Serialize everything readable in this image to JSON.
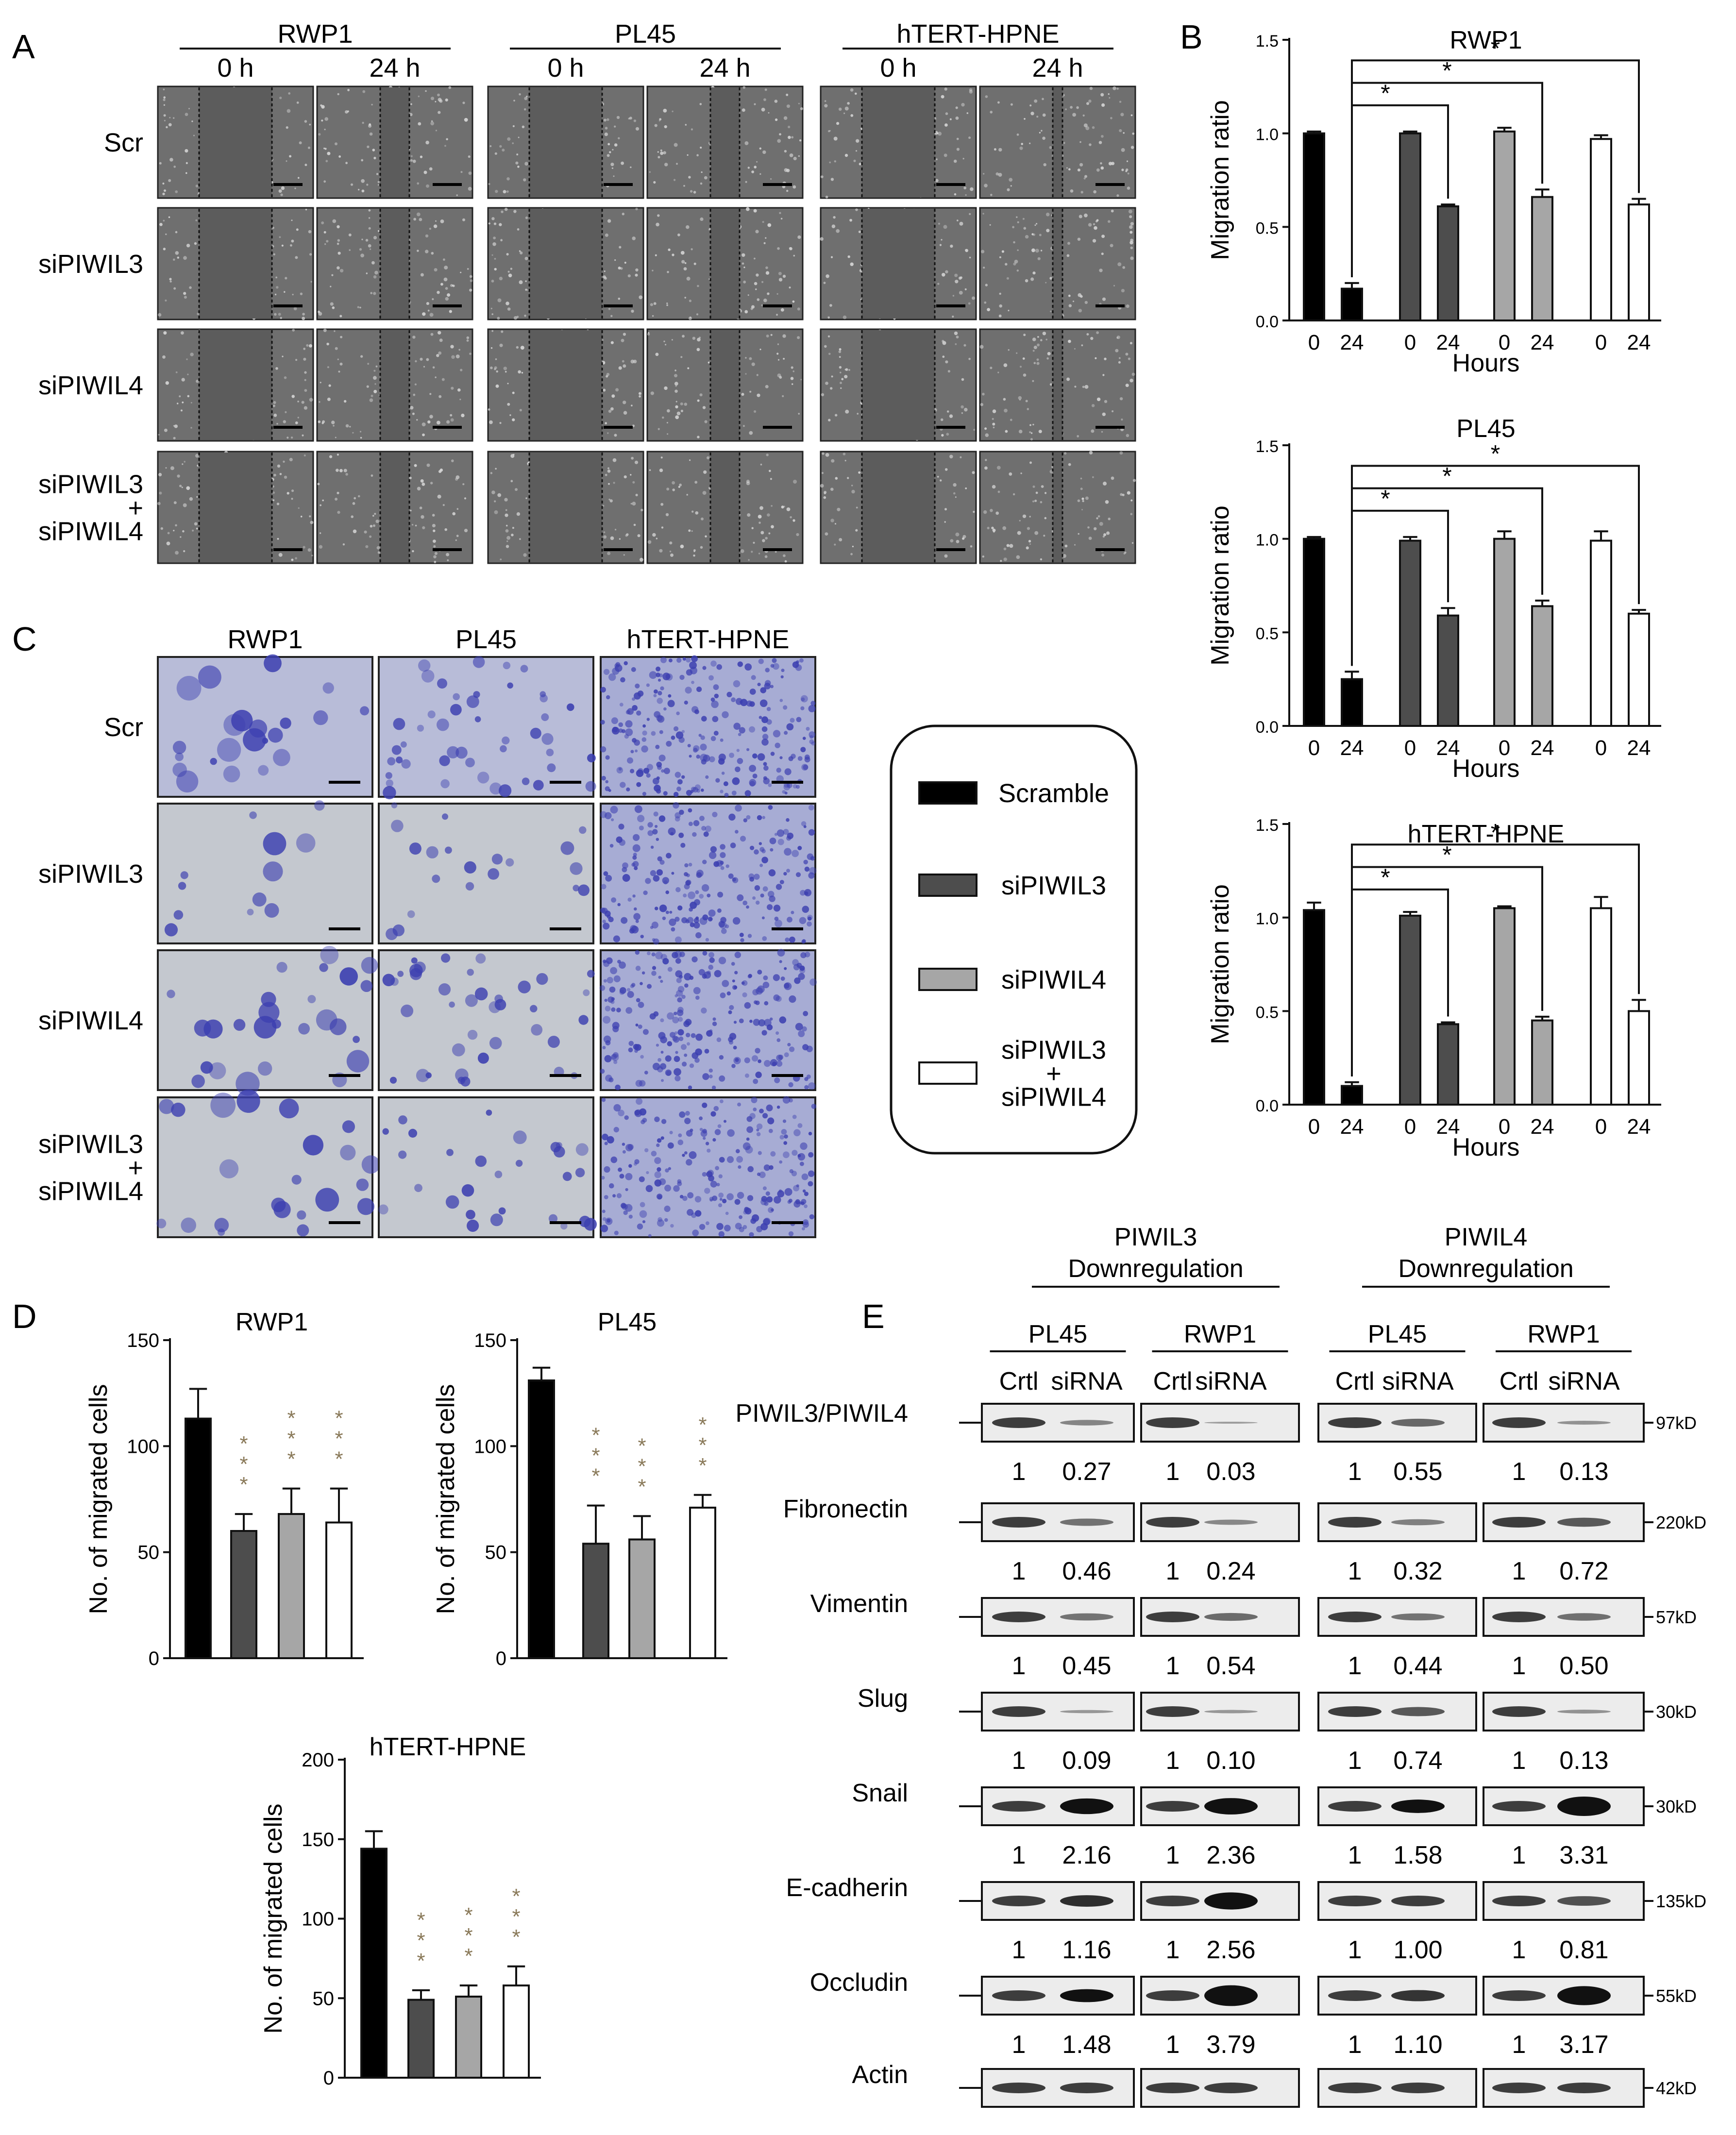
{
  "panel_letters": {
    "a": "A",
    "b": "B",
    "c": "C",
    "d": "D",
    "e": "E"
  },
  "panel_a": {
    "cell_lines": [
      "RWP1",
      "PL45",
      "hTERT-HPNE"
    ],
    "time_points": [
      "0 h",
      "24 h"
    ],
    "conditions": [
      "Scr",
      "siPIWIL3",
      "siPIWIL4",
      "siPIWIL3 + siPIWIL4"
    ]
  },
  "panel_c": {
    "cell_lines": [
      "RWP1",
      "PL45",
      "hTERT-HPNE"
    ],
    "conditions": [
      "Scr",
      "siPIWIL3",
      "siPIWIL4",
      "siPIWIL3 + siPIWIL4"
    ]
  },
  "legend": {
    "items": [
      {
        "label": "Scramble",
        "color": "#000000"
      },
      {
        "label": "siPIWIL3",
        "color": "#4d4d4d"
      },
      {
        "label": "siPIWIL4",
        "color": "#a6a6a6"
      },
      {
        "label": "siPIWIL3 + siPIWIL4",
        "color": "#ffffff"
      }
    ]
  },
  "chart_data": [
    {
      "id": "B-RWP1",
      "type": "bar",
      "title": "RWP1",
      "xlabel": "Hours",
      "ylabel": "Migration ratio",
      "ylim": [
        0,
        1.5
      ],
      "yticks": [
        "0.0",
        "0.5",
        "1.0",
        "1.5"
      ],
      "categories": [
        "0",
        "24",
        "0",
        "24",
        "0",
        "24",
        "0",
        "24"
      ],
      "groups": [
        "Scramble",
        "Scramble",
        "siPIWIL3",
        "siPIWIL3",
        "siPIWIL4",
        "siPIWIL4",
        "siPIWIL3 + siPIWIL4",
        "siPIWIL3 + siPIWIL4"
      ],
      "values": [
        1.0,
        0.17,
        1.0,
        0.61,
        1.01,
        0.66,
        0.97,
        0.62
      ],
      "errors": [
        0.01,
        0.03,
        0.01,
        0.01,
        0.02,
        0.04,
        0.02,
        0.03
      ],
      "significance": [
        "*",
        "*",
        "*"
      ]
    },
    {
      "id": "B-PL45",
      "type": "bar",
      "title": "PL45",
      "xlabel": "Hours",
      "ylabel": "Migration ratio",
      "ylim": [
        0,
        1.5
      ],
      "yticks": [
        "0.0",
        "0.5",
        "1.0",
        "1.5"
      ],
      "categories": [
        "0",
        "24",
        "0",
        "24",
        "0",
        "24",
        "0",
        "24"
      ],
      "groups": [
        "Scramble",
        "Scramble",
        "siPIWIL3",
        "siPIWIL3",
        "siPIWIL4",
        "siPIWIL4",
        "siPIWIL3 + siPIWIL4",
        "siPIWIL3 + siPIWIL4"
      ],
      "values": [
        1.0,
        0.25,
        0.99,
        0.59,
        1.0,
        0.64,
        0.99,
        0.6
      ],
      "errors": [
        0.01,
        0.04,
        0.02,
        0.04,
        0.04,
        0.03,
        0.05,
        0.02
      ],
      "significance": [
        "*",
        "*",
        "*"
      ]
    },
    {
      "id": "B-hTERT-HPNE",
      "type": "bar",
      "title": "hTERT-HPNE",
      "xlabel": "Hours",
      "ylabel": "Migration ratio",
      "ylim": [
        0,
        1.5
      ],
      "yticks": [
        "0.0",
        "0.5",
        "1.0",
        "1.5"
      ],
      "categories": [
        "0",
        "24",
        "0",
        "24",
        "0",
        "24",
        "0",
        "24"
      ],
      "groups": [
        "Scramble",
        "Scramble",
        "siPIWIL3",
        "siPIWIL3",
        "siPIWIL4",
        "siPIWIL4",
        "siPIWIL3 + siPIWIL4",
        "siPIWIL3 + siPIWIL4"
      ],
      "values": [
        1.04,
        0.1,
        1.01,
        0.43,
        1.05,
        0.45,
        1.05,
        0.5
      ],
      "errors": [
        0.04,
        0.02,
        0.02,
        0.01,
        0.01,
        0.02,
        0.06,
        0.06
      ],
      "significance": [
        "*",
        "*",
        "*"
      ]
    },
    {
      "id": "D-RWP1",
      "type": "bar",
      "title": "RWP1",
      "ylabel": "No. of migrated cells",
      "ylim": [
        0,
        150
      ],
      "yticks": [
        "0",
        "50",
        "100",
        "150"
      ],
      "groups": [
        "Scramble",
        "siPIWIL3",
        "siPIWIL4",
        "siPIWIL3 + siPIWIL4"
      ],
      "values": [
        113,
        60,
        68,
        64
      ],
      "errors": [
        14,
        8,
        12,
        16
      ],
      "significance": [
        "",
        "***",
        "***",
        "***"
      ]
    },
    {
      "id": "D-PL45",
      "type": "bar",
      "title": "PL45",
      "ylabel": "No. of migrated cells",
      "ylim": [
        0,
        150
      ],
      "yticks": [
        "0",
        "50",
        "100",
        "150"
      ],
      "groups": [
        "Scramble",
        "siPIWIL3",
        "siPIWIL4",
        "siPIWIL3 + siPIWIL4"
      ],
      "values": [
        131,
        54,
        56,
        71
      ],
      "errors": [
        6,
        18,
        11,
        6
      ],
      "significance": [
        "",
        "***",
        "***",
        "***"
      ]
    },
    {
      "id": "D-hTERT-HPNE",
      "type": "bar",
      "title": "hTERT-HPNE",
      "ylabel": "No. of migrated cells",
      "ylim": [
        0,
        200
      ],
      "yticks": [
        "0",
        "50",
        "100",
        "150",
        "200"
      ],
      "groups": [
        "Scramble",
        "siPIWIL3",
        "siPIWIL4",
        "siPIWIL3 + siPIWIL4"
      ],
      "values": [
        144,
        49,
        51,
        58
      ],
      "errors": [
        11,
        6,
        7,
        12
      ],
      "significance": [
        "",
        "***",
        "***",
        "***"
      ]
    }
  ],
  "panel_e": {
    "groups": [
      "PIWIL3 Downregulation",
      "PIWIL4 Downregulation"
    ],
    "cell_lines": [
      "PL45",
      "RWP1",
      "PL45",
      "RWP1"
    ],
    "lanes": [
      "Crtl",
      "siRNA",
      "Crtl",
      "siRNA",
      "Crtl",
      "siRNA",
      "Crtl",
      "siRNA"
    ],
    "proteins": [
      {
        "name": "PIWIL3/PIWIL4",
        "size": "97kD",
        "values": [
          "1",
          "0.27",
          "1",
          "0.03",
          "1",
          "0.55",
          "1",
          "0.13"
        ]
      },
      {
        "name": "Fibronectin",
        "size": "220kD",
        "values": [
          "1",
          "0.46",
          "1",
          "0.24",
          "1",
          "0.32",
          "1",
          "0.72"
        ]
      },
      {
        "name": "Vimentin",
        "size": "57kD",
        "values": [
          "1",
          "0.45",
          "1",
          "0.54",
          "1",
          "0.44",
          "1",
          "0.50"
        ]
      },
      {
        "name": "Slug",
        "size": "30kD",
        "values": [
          "1",
          "0.09",
          "1",
          "0.10",
          "1",
          "0.74",
          "1",
          "0.13"
        ]
      },
      {
        "name": "Snail",
        "size": "30kD",
        "values": [
          "1",
          "2.16",
          "1",
          "2.36",
          "1",
          "1.58",
          "1",
          "3.31"
        ]
      },
      {
        "name": "E-cadherin",
        "size": "135kD",
        "values": [
          "1",
          "1.16",
          "1",
          "2.56",
          "1",
          "1.00",
          "1",
          "0.81"
        ]
      },
      {
        "name": "Occludin",
        "size": "55kD",
        "values": [
          "1",
          "1.48",
          "1",
          "3.79",
          "1",
          "1.10",
          "1",
          "3.17"
        ]
      },
      {
        "name": "Actin",
        "size": "42kD",
        "values": []
      }
    ]
  }
}
